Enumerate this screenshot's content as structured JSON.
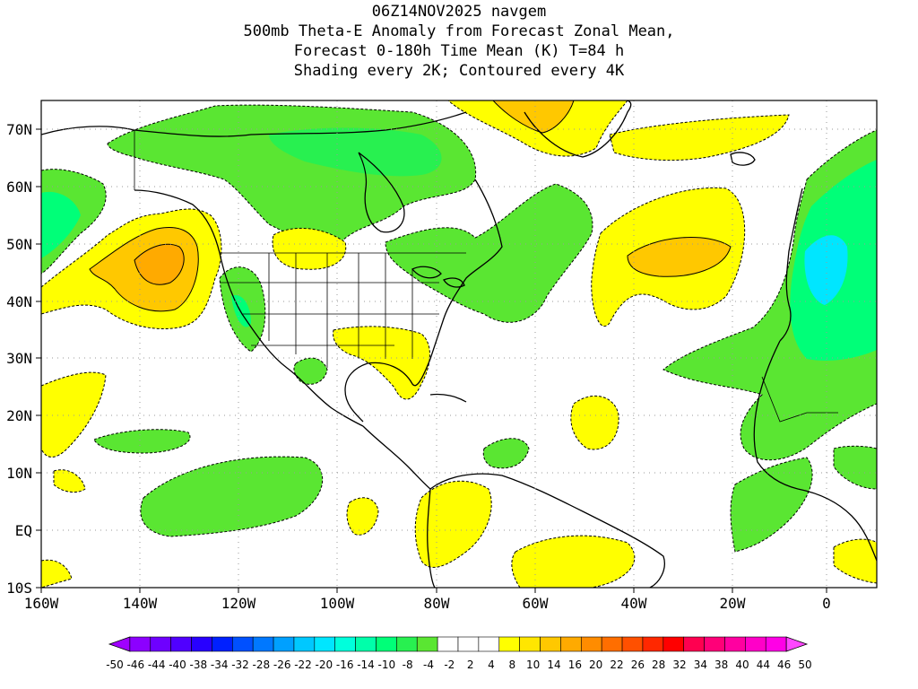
{
  "title": {
    "line1": "06Z14NOV2025 navgem",
    "line2": "500mb Theta-E Anomaly from Forecast Zonal Mean,",
    "line3": "Forecast 0-180h Time Mean (K) T=84 h",
    "line4": "Shading every 2K; Contoured every 4K"
  },
  "axes": {
    "lat_labels": [
      "70N",
      "60N",
      "50N",
      "40N",
      "30N",
      "20N",
      "10N",
      "EQ",
      "10S"
    ],
    "lon_labels": [
      "160W",
      "140W",
      "120W",
      "100W",
      "80W",
      "60W",
      "40W",
      "20W",
      "0"
    ]
  },
  "colorbar": {
    "labels": [
      "-50",
      "-46",
      "-44",
      "-40",
      "-38",
      "-34",
      "-32",
      "-28",
      "-26",
      "-22",
      "-20",
      "-16",
      "-14",
      "-10",
      "-8",
      "-4",
      "-2",
      "2",
      "4",
      "8",
      "10",
      "14",
      "16",
      "20",
      "22",
      "26",
      "28",
      "32",
      "34",
      "38",
      "40",
      "44",
      "46",
      "50"
    ],
    "colors": [
      "#a000ff",
      "#8c00ff",
      "#6e00ff",
      "#5000ff",
      "#2800ff",
      "#0020ff",
      "#0050ff",
      "#0078ff",
      "#00a0ff",
      "#00c8ff",
      "#00e6ff",
      "#00ffdc",
      "#00ffaa",
      "#00ff78",
      "#28f050",
      "#5ae632",
      "#ffffff",
      "#ffffff",
      "#ffffff",
      "#ffff00",
      "#ffe600",
      "#ffc800",
      "#ffaa00",
      "#ff8c00",
      "#ff6e00",
      "#ff5000",
      "#ff2800",
      "#ff0000",
      "#ff0050",
      "#ff0078",
      "#ff00a0",
      "#ff00c8",
      "#ff00e6",
      "#ff46ff"
    ]
  },
  "colors": {
    "green": "#5ae632",
    "green_light": "#28f050",
    "teal": "#00ff78",
    "cyan": "#00e6ff",
    "yellow": "#ffff00",
    "orange": "#ffc800",
    "dark_orange": "#ffaa00"
  }
}
